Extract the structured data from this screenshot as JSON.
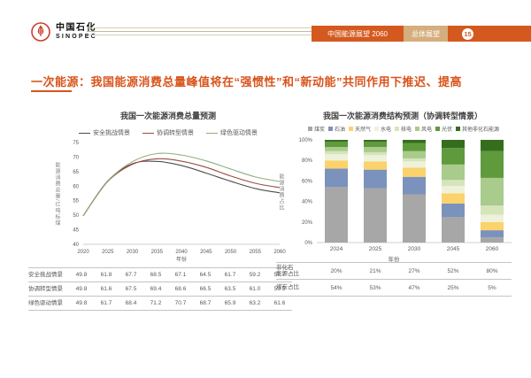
{
  "header": {
    "logo_cn": "中国石化",
    "logo_en": "SINOPEC",
    "banner_title": "中国能源展望 2060",
    "banner_tag": "总体展望",
    "page_number": "15"
  },
  "slide_title": "一次能源：我国能源消费总量峰值将在“强惯性”和“新动能”共同作用下推迟、提高",
  "colors": {
    "accent_orange": "#d8541c",
    "banner_orange": "#d4591f",
    "banner_tan": "#d5ae7d",
    "axis_gray": "#bfbfbf",
    "text_gray": "#595959"
  },
  "chart_data": [
    {
      "type": "line",
      "title": "我国一次能源消费总量预测",
      "x": [
        2020,
        2025,
        2030,
        2035,
        2040,
        2045,
        2050,
        2055,
        2060
      ],
      "xlabel": "年份",
      "ylabel": "能源消费总量/亿吨标煤",
      "ylim": [
        40,
        75
      ],
      "yticks": [
        40,
        45,
        50,
        55,
        60,
        65,
        70,
        75
      ],
      "grid": false,
      "legend_position": "top",
      "series": [
        {
          "name": "安全挑战情景",
          "color": "#4c4c4c",
          "values": [
            49.8,
            61.8,
            67.7,
            68.5,
            67.1,
            64.5,
            61.7,
            59.2,
            57.7
          ]
        },
        {
          "name": "协调转型情景",
          "color": "#9c4a3d",
          "values": [
            49.8,
            61.6,
            67.5,
            69.4,
            68.6,
            66.5,
            63.5,
            61.0,
            59.5
          ]
        },
        {
          "name": "绿色驱动情景",
          "color": "#8fae79",
          "values": [
            49.8,
            61.7,
            68.4,
            71.2,
            70.7,
            68.7,
            65.9,
            63.2,
            61.6
          ]
        }
      ]
    },
    {
      "type": "stacked_bar",
      "title": "我国一次能源消费结构预测（协调转型情景）",
      "categories": [
        "2024",
        "2025",
        "2030",
        "2045",
        "2060"
      ],
      "xlabel": "年份",
      "ylabel": "能源消费占比",
      "ylim": [
        0,
        100
      ],
      "yticks": [
        "0%",
        "20%",
        "40%",
        "60%",
        "80%",
        "100%"
      ],
      "grid": false,
      "legend_position": "top",
      "series": [
        {
          "name": "煤炭",
          "color": "#a7a7a7",
          "values": [
            54,
            53,
            47,
            25,
            5
          ]
        },
        {
          "name": "石油",
          "color": "#7b92bc",
          "values": [
            18,
            18,
            17,
            13,
            7
          ]
        },
        {
          "name": "天然气",
          "color": "#fbd26b",
          "values": [
            8,
            8,
            9,
            10,
            8
          ]
        },
        {
          "name": "水电",
          "color": "#eef2da",
          "values": [
            6,
            6,
            6,
            7,
            7
          ]
        },
        {
          "name": "核电",
          "color": "#d6e4bb",
          "values": [
            3,
            3,
            3,
            6,
            9
          ]
        },
        {
          "name": "风电",
          "color": "#a9cb8b",
          "values": [
            4,
            5,
            7,
            15,
            27
          ]
        },
        {
          "name": "光伏",
          "color": "#5f9a3c",
          "values": [
            5,
            5,
            8,
            16,
            26
          ]
        },
        {
          "name": "其他非化石能源",
          "color": "#366d1d",
          "values": [
            2,
            2,
            3,
            8,
            11
          ]
        }
      ],
      "summary_table": {
        "rows": [
          {
            "label": "非化石\n能源占比",
            "values": [
              "20%",
              "21%",
              "27%",
              "52%",
              "80%"
            ]
          },
          {
            "label": "煤炭占比",
            "values": [
              "54%",
              "53%",
              "47%",
              "25%",
              "5%"
            ]
          }
        ]
      }
    }
  ]
}
